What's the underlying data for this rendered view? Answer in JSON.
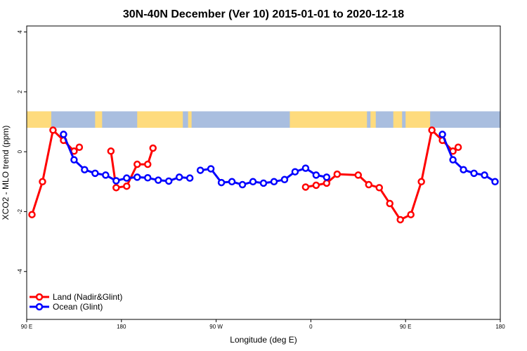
{
  "chart_data": {
    "type": "line",
    "title": "30N-40N December (Ver 10)   2015-01-01 to 2020-12-18",
    "xlabel": "Longitude (deg E)",
    "ylabel": "XCO2 - MLO trend (ppm)",
    "xlim": [
      -90,
      180
    ],
    "ylim": [
      -5.6,
      4.2
    ],
    "x_ticks": [
      {
        "value": -90,
        "label": "90 E"
      },
      {
        "value": -36,
        "label": "180"
      },
      {
        "value": 18,
        "label": "90 W"
      },
      {
        "value": 72,
        "label": "0"
      },
      {
        "value": 126,
        "label": "90 E"
      },
      {
        "value": 180,
        "label": "180"
      }
    ],
    "y_ticks": [
      {
        "value": -4,
        "label": "-4"
      },
      {
        "value": -2,
        "label": "-2"
      },
      {
        "value": 0,
        "label": "0"
      },
      {
        "value": 2,
        "label": "2"
      },
      {
        "value": 4,
        "label": "4"
      }
    ],
    "map_band": {
      "y_range": [
        0.8,
        1.35
      ],
      "ocean_color": "#a9bedf",
      "land_color": "#fedb7d"
    },
    "legend_position": "bottom-left",
    "series": [
      {
        "name": "Land (Nadir&Glint)",
        "color": "#ff0000",
        "segments": [
          [
            [
              -87,
              -2.1
            ],
            [
              -81,
              -1.0
            ],
            [
              -75,
              0.72
            ],
            [
              -69,
              0.38
            ],
            [
              -63,
              0.02
            ],
            [
              -60,
              0.15
            ]
          ],
          [
            [
              -42,
              0.02
            ],
            [
              -39,
              -1.2
            ],
            [
              -33,
              -1.15
            ],
            [
              -27,
              -0.42
            ],
            [
              -21,
              -0.42
            ],
            [
              -18,
              0.12
            ]
          ],
          [
            [
              69,
              -1.18
            ],
            [
              75,
              -1.12
            ],
            [
              81,
              -1.05
            ],
            [
              87,
              -0.75
            ],
            [
              99,
              -0.78
            ],
            [
              105,
              -1.1
            ],
            [
              111,
              -1.2
            ],
            [
              117,
              -1.73
            ],
            [
              123,
              -2.27
            ],
            [
              129,
              -2.1
            ],
            [
              135,
              -1.0
            ],
            [
              141,
              0.72
            ],
            [
              147,
              0.38
            ],
            [
              153,
              0.02
            ],
            [
              156,
              0.15
            ]
          ]
        ]
      },
      {
        "name": "Ocean (Glint)",
        "color": "#0000ff",
        "segments": [
          [
            [
              -69,
              0.58
            ],
            [
              -63,
              -0.27
            ],
            [
              -57,
              -0.6
            ],
            [
              -51,
              -0.72
            ],
            [
              -45,
              -0.78
            ],
            [
              -39,
              -0.97
            ],
            [
              -33,
              -0.88
            ],
            [
              -27,
              -0.85
            ],
            [
              -21,
              -0.87
            ],
            [
              -15,
              -0.95
            ],
            [
              -9,
              -0.98
            ],
            [
              -3,
              -0.85
            ],
            [
              3,
              -0.88
            ]
          ],
          [
            [
              9,
              -0.62
            ],
            [
              15,
              -0.57
            ],
            [
              21,
              -1.03
            ],
            [
              27,
              -1.0
            ],
            [
              33,
              -1.1
            ],
            [
              39,
              -1.0
            ],
            [
              45,
              -1.05
            ],
            [
              51,
              -1.0
            ],
            [
              57,
              -0.93
            ],
            [
              63,
              -0.67
            ],
            [
              69,
              -0.55
            ],
            [
              75,
              -0.78
            ],
            [
              81,
              -0.85
            ]
          ],
          [
            [
              147,
              0.58
            ],
            [
              153,
              -0.27
            ],
            [
              159,
              -0.6
            ],
            [
              165,
              -0.72
            ],
            [
              171,
              -0.78
            ],
            [
              177,
              -1.0
            ]
          ]
        ]
      }
    ]
  }
}
